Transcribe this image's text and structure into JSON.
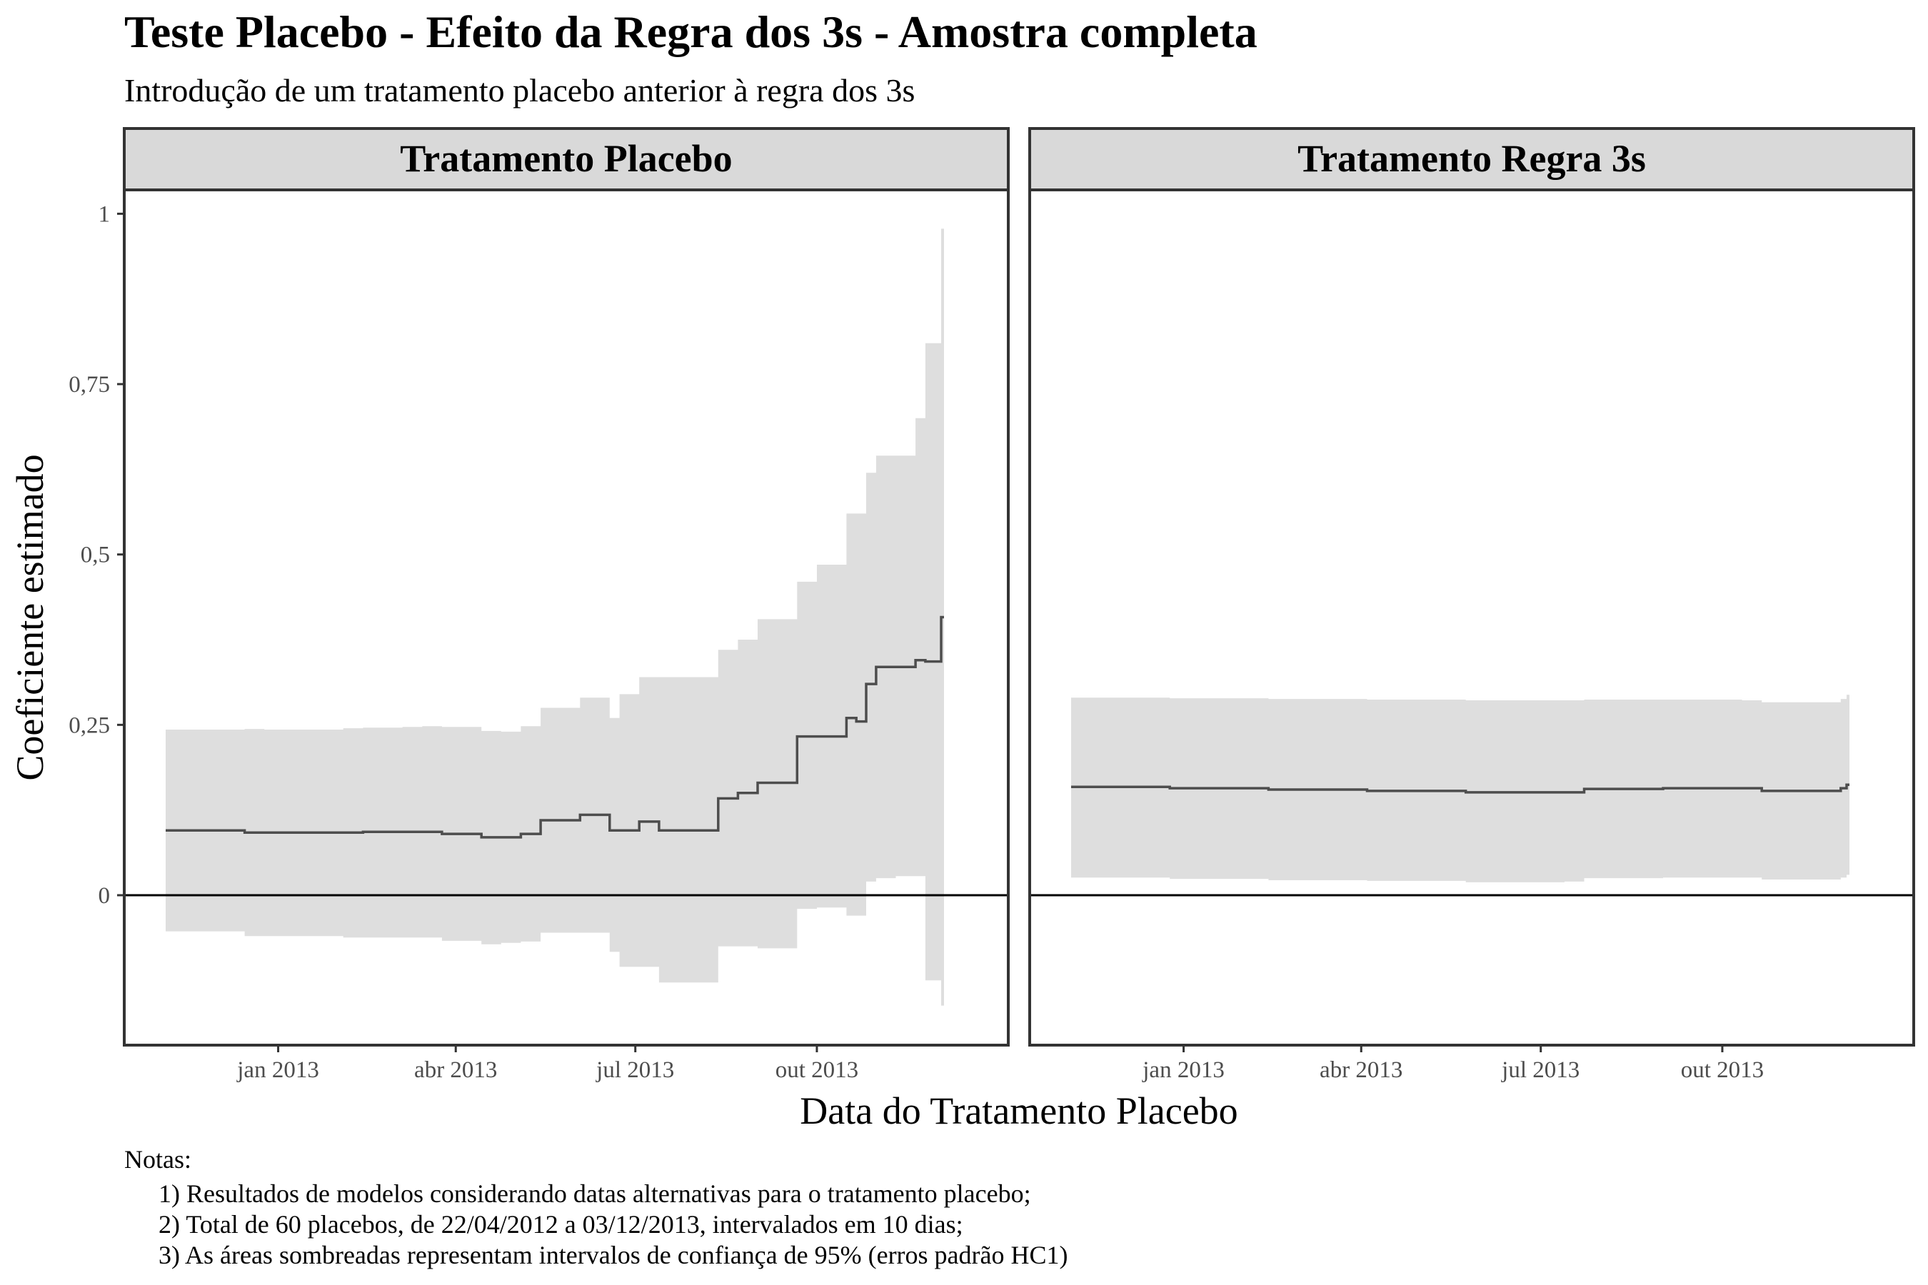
{
  "chart_data": {
    "type": "line",
    "title": "Teste Placebo - Efeito da Regra dos 3s - Amostra completa",
    "subtitle": "Introdução de um tratamento placebo anterior à regra dos 3s",
    "xlabel": "Data do Tratamento Placebo",
    "ylabel": "Coeficiente estimado",
    "x_ticks": [
      {
        "date": "2013-01-01",
        "label": "jan 2013"
      },
      {
        "date": "2013-04-01",
        "label": "abr 2013"
      },
      {
        "date": "2013-07-01",
        "label": "jul 2013"
      },
      {
        "date": "2013-10-01",
        "label": "out 2013"
      }
    ],
    "y_ticks": [
      {
        "value": 0,
        "label": "0"
      },
      {
        "value": 0.25,
        "label": "0,25"
      },
      {
        "value": 0.5,
        "label": "0,5"
      },
      {
        "value": 0.75,
        "label": "0,75"
      },
      {
        "value": 1,
        "label": "1"
      }
    ],
    "xlim": [
      "2012-10-15",
      "2014-01-06"
    ],
    "ylim": [
      -0.22,
      1.035
    ],
    "grid": false,
    "hline": 0,
    "colors": {
      "line": "#4d4d4d",
      "ribbon": "#dedede",
      "strip_fill": "#d9d9d9",
      "frame": "#333333"
    },
    "panels": [
      {
        "strip_label": "Tratamento Placebo",
        "points": [
          {
            "x": "2012-11-05",
            "y": 0.095,
            "lo": -0.053,
            "hi": 0.243
          },
          {
            "x": "2012-11-15",
            "y": 0.095,
            "lo": -0.053,
            "hi": 0.243
          },
          {
            "x": "2012-11-25",
            "y": 0.095,
            "lo": -0.053,
            "hi": 0.243
          },
          {
            "x": "2012-12-05",
            "y": 0.095,
            "lo": -0.053,
            "hi": 0.243
          },
          {
            "x": "2012-12-15",
            "y": 0.092,
            "lo": -0.06,
            "hi": 0.244
          },
          {
            "x": "2012-12-25",
            "y": 0.092,
            "lo": -0.06,
            "hi": 0.243
          },
          {
            "x": "2013-01-04",
            "y": 0.092,
            "lo": -0.06,
            "hi": 0.243
          },
          {
            "x": "2013-01-14",
            "y": 0.092,
            "lo": -0.06,
            "hi": 0.243
          },
          {
            "x": "2013-01-24",
            "y": 0.092,
            "lo": -0.06,
            "hi": 0.243
          },
          {
            "x": "2013-02-03",
            "y": 0.092,
            "lo": -0.062,
            "hi": 0.245
          },
          {
            "x": "2013-02-13",
            "y": 0.093,
            "lo": -0.062,
            "hi": 0.246
          },
          {
            "x": "2013-02-23",
            "y": 0.093,
            "lo": -0.062,
            "hi": 0.246
          },
          {
            "x": "2013-03-05",
            "y": 0.093,
            "lo": -0.062,
            "hi": 0.247
          },
          {
            "x": "2013-03-15",
            "y": 0.093,
            "lo": -0.062,
            "hi": 0.248
          },
          {
            "x": "2013-03-25",
            "y": 0.09,
            "lo": -0.067,
            "hi": 0.247
          },
          {
            "x": "2013-04-04",
            "y": 0.09,
            "lo": -0.067,
            "hi": 0.247
          },
          {
            "x": "2013-04-14",
            "y": 0.085,
            "lo": -0.072,
            "hi": 0.241
          },
          {
            "x": "2013-04-24",
            "y": 0.085,
            "lo": -0.07,
            "hi": 0.24
          },
          {
            "x": "2013-05-04",
            "y": 0.09,
            "lo": -0.068,
            "hi": 0.248
          },
          {
            "x": "2013-05-14",
            "y": 0.11,
            "lo": -0.055,
            "hi": 0.275
          },
          {
            "x": "2013-05-24",
            "y": 0.11,
            "lo": -0.055,
            "hi": 0.275
          },
          {
            "x": "2013-06-03",
            "y": 0.118,
            "lo": -0.055,
            "hi": 0.29
          },
          {
            "x": "2013-06-13",
            "y": 0.118,
            "lo": -0.055,
            "hi": 0.29
          },
          {
            "x": "2013-06-18",
            "y": 0.095,
            "lo": -0.083,
            "hi": 0.26
          },
          {
            "x": "2013-06-23",
            "y": 0.095,
            "lo": -0.105,
            "hi": 0.295
          },
          {
            "x": "2013-07-03",
            "y": 0.108,
            "lo": -0.105,
            "hi": 0.32
          },
          {
            "x": "2013-07-13",
            "y": 0.095,
            "lo": -0.128,
            "hi": 0.32
          },
          {
            "x": "2013-07-23",
            "y": 0.095,
            "lo": -0.128,
            "hi": 0.32
          },
          {
            "x": "2013-08-02",
            "y": 0.095,
            "lo": -0.128,
            "hi": 0.32
          },
          {
            "x": "2013-08-12",
            "y": 0.142,
            "lo": -0.075,
            "hi": 0.36
          },
          {
            "x": "2013-08-22",
            "y": 0.15,
            "lo": -0.075,
            "hi": 0.375
          },
          {
            "x": "2013-09-01",
            "y": 0.165,
            "lo": -0.078,
            "hi": 0.405
          },
          {
            "x": "2013-09-11",
            "y": 0.165,
            "lo": -0.078,
            "hi": 0.405
          },
          {
            "x": "2013-09-21",
            "y": 0.233,
            "lo": -0.02,
            "hi": 0.46
          },
          {
            "x": "2013-10-01",
            "y": 0.233,
            "lo": -0.018,
            "hi": 0.485
          },
          {
            "x": "2013-10-11",
            "y": 0.233,
            "lo": -0.018,
            "hi": 0.485
          },
          {
            "x": "2013-10-16",
            "y": 0.26,
            "lo": -0.03,
            "hi": 0.56
          },
          {
            "x": "2013-10-21",
            "y": 0.255,
            "lo": -0.03,
            "hi": 0.56
          },
          {
            "x": "2013-10-26",
            "y": 0.31,
            "lo": 0.02,
            "hi": 0.62
          },
          {
            "x": "2013-10-31",
            "y": 0.335,
            "lo": 0.025,
            "hi": 0.645
          },
          {
            "x": "2013-11-10",
            "y": 0.335,
            "lo": 0.028,
            "hi": 0.645
          },
          {
            "x": "2013-11-20",
            "y": 0.345,
            "lo": 0.028,
            "hi": 0.7
          },
          {
            "x": "2013-11-25",
            "y": 0.343,
            "lo": -0.125,
            "hi": 0.81
          },
          {
            "x": "2013-11-30",
            "y": 0.343,
            "lo": -0.125,
            "hi": 0.81
          },
          {
            "x": "2013-12-03",
            "y": 0.408,
            "lo": -0.162,
            "hi": 0.978
          }
        ]
      },
      {
        "strip_label": "Tratamento Regra 3s",
        "points": [
          {
            "x": "2012-11-05",
            "y": 0.159,
            "lo": 0.026,
            "hi": 0.29
          },
          {
            "x": "2012-12-25",
            "y": 0.157,
            "lo": 0.024,
            "hi": 0.289
          },
          {
            "x": "2013-02-13",
            "y": 0.155,
            "lo": 0.022,
            "hi": 0.288
          },
          {
            "x": "2013-04-04",
            "y": 0.153,
            "lo": 0.021,
            "hi": 0.287
          },
          {
            "x": "2013-05-24",
            "y": 0.151,
            "lo": 0.019,
            "hi": 0.286
          },
          {
            "x": "2013-07-13",
            "y": 0.151,
            "lo": 0.02,
            "hi": 0.286
          },
          {
            "x": "2013-07-23",
            "y": 0.156,
            "lo": 0.025,
            "hi": 0.287
          },
          {
            "x": "2013-09-01",
            "y": 0.157,
            "lo": 0.026,
            "hi": 0.287
          },
          {
            "x": "2013-10-11",
            "y": 0.157,
            "lo": 0.026,
            "hi": 0.286
          },
          {
            "x": "2013-10-21",
            "y": 0.153,
            "lo": 0.023,
            "hi": 0.283
          },
          {
            "x": "2013-11-20",
            "y": 0.153,
            "lo": 0.023,
            "hi": 0.283
          },
          {
            "x": "2013-11-30",
            "y": 0.157,
            "lo": 0.026,
            "hi": 0.288
          },
          {
            "x": "2013-12-03",
            "y": 0.162,
            "lo": 0.03,
            "hi": 0.294
          }
        ]
      }
    ]
  },
  "notes": {
    "heading": "Notas:",
    "lines": [
      "1) Resultados de modelos considerando datas alternativas para o tratamento placebo;",
      "2) Total de 60 placebos, de 22/04/2012 a 03/12/2013, intervalados em 10 dias;",
      "3) As áreas sombreadas representam intervalos de confiança de 95% (erros padrão HC1)"
    ]
  }
}
